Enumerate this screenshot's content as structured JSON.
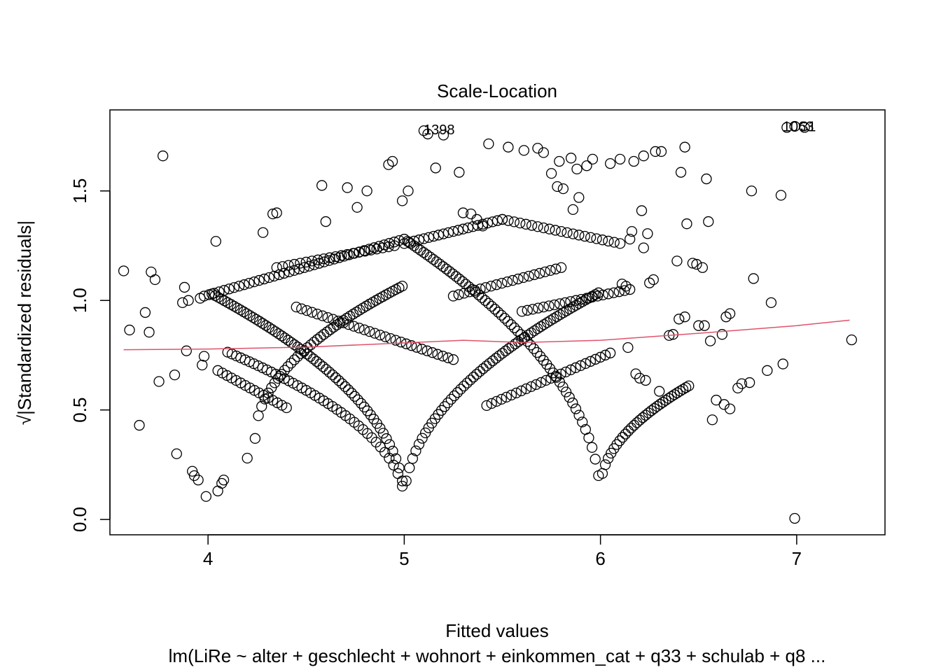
{
  "chart_data": {
    "type": "scatter",
    "title": "Scale-Location",
    "xlabel": "Fitted values",
    "ylabel": "√|Standardized residuals|",
    "subtitle": "lm(LiRe ~ alter + geschlecht + wohnort + einkommen_cat + q33 + schulab + q8 ...",
    "xlim": [
      3.5,
      7.45
    ],
    "ylim": [
      -0.07,
      1.87
    ],
    "x_ticks": [
      4,
      5,
      6,
      7
    ],
    "y_ticks": [
      0.0,
      0.5,
      1.0,
      1.5
    ],
    "x_tick_labels": [
      "4",
      "5",
      "6",
      "7"
    ],
    "y_tick_labels": [
      "0.0",
      "0.5",
      "1.0",
      "1.5"
    ],
    "grid": false,
    "smoother": {
      "color": "#DF536B",
      "points": [
        [
          3.57,
          0.775
        ],
        [
          4.0,
          0.778
        ],
        [
          4.5,
          0.787
        ],
        [
          5.0,
          0.806
        ],
        [
          5.3,
          0.818
        ],
        [
          5.6,
          0.808
        ],
        [
          6.0,
          0.818
        ],
        [
          6.5,
          0.85
        ],
        [
          7.0,
          0.885
        ],
        [
          7.27,
          0.91
        ]
      ]
    },
    "annotations": [
      {
        "text": "1398",
        "x": 5.07,
        "y": 1.78
      },
      {
        "text": "1063",
        "x": 6.9,
        "y": 1.795
      },
      {
        "text": "31",
        "x": 6.99,
        "y": 1.795
      }
    ],
    "points": [
      [
        3.57,
        1.135
      ],
      [
        3.6,
        0.865
      ],
      [
        3.65,
        0.43
      ],
      [
        3.68,
        0.945
      ],
      [
        3.7,
        0.855
      ],
      [
        3.71,
        1.13
      ],
      [
        3.73,
        1.095
      ],
      [
        3.75,
        0.63
      ],
      [
        3.77,
        1.66
      ],
      [
        3.83,
        0.66
      ],
      [
        3.84,
        0.3
      ],
      [
        3.87,
        0.99
      ],
      [
        3.88,
        1.06
      ],
      [
        3.89,
        0.77
      ],
      [
        3.9,
        1.0
      ],
      [
        3.92,
        0.22
      ],
      [
        3.93,
        0.2
      ],
      [
        3.95,
        0.18
      ],
      [
        3.96,
        1.01
      ],
      [
        3.97,
        0.705
      ],
      [
        3.98,
        0.745
      ],
      [
        3.99,
        0.105
      ],
      [
        4.05,
        0.13
      ],
      [
        4.07,
        0.165
      ],
      [
        4.08,
        0.18
      ],
      [
        4.04,
        1.27
      ],
      [
        4.2,
        0.28
      ],
      [
        4.28,
        1.31
      ],
      [
        4.33,
        1.395
      ],
      [
        4.35,
        1.4
      ],
      [
        4.58,
        1.525
      ],
      [
        4.6,
        1.36
      ],
      [
        4.71,
        1.515
      ],
      [
        4.76,
        1.425
      ],
      [
        4.81,
        1.5
      ],
      [
        4.94,
        1.635
      ],
      [
        4.99,
        1.455
      ],
      [
        5.02,
        1.5
      ],
      [
        5.1,
        1.775
      ],
      [
        5.12,
        1.76
      ],
      [
        5.16,
        1.605
      ],
      [
        5.2,
        1.755
      ],
      [
        5.28,
        1.585
      ],
      [
        5.43,
        1.715
      ],
      [
        5.53,
        1.7
      ],
      [
        5.61,
        1.685
      ],
      [
        5.68,
        1.695
      ],
      [
        5.71,
        1.675
      ],
      [
        5.75,
        1.58
      ],
      [
        5.79,
        1.635
      ],
      [
        5.85,
        1.65
      ],
      [
        5.88,
        1.6
      ],
      [
        5.93,
        1.615
      ],
      [
        5.96,
        1.645
      ],
      [
        6.05,
        1.625
      ],
      [
        6.1,
        1.645
      ],
      [
        6.17,
        1.635
      ],
      [
        6.22,
        1.66
      ],
      [
        6.28,
        1.68
      ],
      [
        6.31,
        1.68
      ],
      [
        6.41,
        1.585
      ],
      [
        6.43,
        1.7
      ],
      [
        6.54,
        1.555
      ],
      [
        6.77,
        1.5
      ],
      [
        6.92,
        1.48
      ],
      [
        6.95,
        1.79
      ],
      [
        6.99,
        1.795
      ],
      [
        7.04,
        1.79
      ],
      [
        7.28,
        0.82
      ],
      [
        6.57,
        0.455
      ],
      [
        6.59,
        0.545
      ],
      [
        6.63,
        0.525
      ],
      [
        6.66,
        0.505
      ],
      [
        6.7,
        0.6
      ],
      [
        6.72,
        0.62
      ],
      [
        6.76,
        0.625
      ],
      [
        6.78,
        1.1
      ],
      [
        6.85,
        0.68
      ],
      [
        6.87,
        0.99
      ],
      [
        6.93,
        0.71
      ],
      [
        6.62,
        0.845
      ],
      [
        6.64,
        0.925
      ],
      [
        6.66,
        0.94
      ],
      [
        6.5,
        0.885
      ],
      [
        6.53,
        0.885
      ],
      [
        6.56,
        0.815
      ],
      [
        6.4,
        0.915
      ],
      [
        6.43,
        0.925
      ],
      [
        6.44,
        1.35
      ],
      [
        6.47,
        1.17
      ],
      [
        6.49,
        1.165
      ],
      [
        6.52,
        1.15
      ],
      [
        6.55,
        1.36
      ],
      [
        6.99,
        0.005
      ],
      [
        6.14,
        0.785
      ],
      [
        6.18,
        0.665
      ],
      [
        6.2,
        0.645
      ],
      [
        6.23,
        0.635
      ],
      [
        6.3,
        0.585
      ],
      [
        6.25,
        1.08
      ],
      [
        6.27,
        1.095
      ],
      [
        6.22,
        1.24
      ],
      [
        6.24,
        1.305
      ],
      [
        6.21,
        1.41
      ],
      [
        6.39,
        1.18
      ],
      [
        6.35,
        0.84
      ],
      [
        6.37,
        0.845
      ],
      [
        6.11,
        1.075
      ],
      [
        6.13,
        1.065
      ],
      [
        6.15,
        1.28
      ],
      [
        6.16,
        1.315
      ],
      [
        4.92,
        1.62
      ],
      [
        5.78,
        1.52
      ],
      [
        5.81,
        1.51
      ],
      [
        5.86,
        1.415
      ],
      [
        5.89,
        1.47
      ],
      [
        5.3,
        1.4
      ],
      [
        5.34,
        1.395
      ],
      [
        5.37,
        1.37
      ],
      [
        5.4,
        1.34
      ]
    ],
    "curves": [
      {
        "x0": 4.02,
        "x1": 5.0,
        "y_at_x0": 1.03,
        "shape": "left-arc-down"
      },
      {
        "x0": 3.97,
        "x1": 5.0,
        "y_at_x0": 0.72,
        "shape": "left-arc-down-inner"
      },
      {
        "x0": 5.0,
        "x1": 6.0,
        "y_at_x0": 0.08,
        "shape": "v-up"
      },
      {
        "x0": 4.24,
        "x1": 5.48,
        "y_at_x0": 0.37,
        "shape": "rise"
      },
      {
        "x0": 6.0,
        "x1": 6.4,
        "y_at_x0": 0.13,
        "shape": "rise-right"
      }
    ]
  }
}
